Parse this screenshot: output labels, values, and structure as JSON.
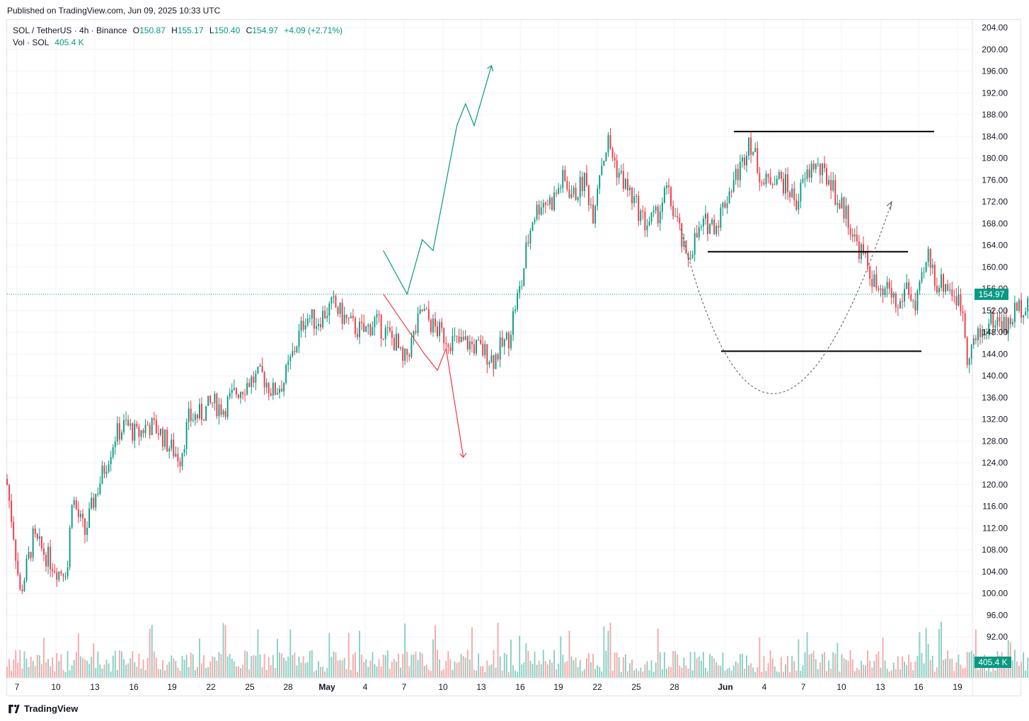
{
  "header": {
    "published": "Published on TradingView.com, Jun 09, 2025 10:33 UTC"
  },
  "legend": {
    "symbol": "SOL / TetherUS · 4h · Binance",
    "o_label": "O",
    "o": "150.87",
    "h_label": "H",
    "h": "155.17",
    "l_label": "L",
    "l": "150.40",
    "c_label": "C",
    "c": "154.97",
    "change": "+4.09 (+2.71%)",
    "vol_label": "Vol · SOL",
    "vol": "405.4 K"
  },
  "footer": {
    "brand": "TradingView"
  },
  "colors": {
    "up": "#089981",
    "down": "#f23645",
    "vol_up": "#89cfc3",
    "vol_down": "#f7a9a7",
    "grid": "#f0f3fa",
    "last": "#089981"
  },
  "chart_data": {
    "type": "candlestick",
    "symbol": "SOL / TetherUS",
    "interval": "4h",
    "exchange": "Binance",
    "ylim": [
      90,
      205
    ],
    "y_ticks": [
      "204.00",
      "200.00",
      "196.00",
      "192.00",
      "188.00",
      "184.00",
      "180.00",
      "176.00",
      "172.00",
      "168.00",
      "164.00",
      "160.00",
      "156.00",
      "152.00",
      "148.00",
      "144.00",
      "140.00",
      "136.00",
      "132.00",
      "128.00",
      "124.00",
      "120.00",
      "116.00",
      "112.00",
      "108.00",
      "104.00",
      "100.00",
      "96.00",
      "92.00"
    ],
    "x_ticks": [
      "7",
      "10",
      "13",
      "16",
      "19",
      "22",
      "25",
      "28",
      "May",
      "4",
      "7",
      "10",
      "13",
      "16",
      "19",
      "22",
      "25",
      "28",
      "Jun",
      "4",
      "7",
      "10",
      "13",
      "16",
      "19"
    ],
    "last_price": "154.97",
    "last_volume": "405.4 K",
    "price_path": [
      [
        0,
        120
      ],
      [
        3,
        111
      ],
      [
        6,
        100
      ],
      [
        8,
        103
      ],
      [
        12,
        110
      ],
      [
        16,
        108
      ],
      [
        20,
        106
      ],
      [
        24,
        104
      ],
      [
        28,
        105
      ],
      [
        30,
        118
      ],
      [
        33,
        114
      ],
      [
        36,
        111
      ],
      [
        40,
        117
      ],
      [
        45,
        123
      ],
      [
        50,
        129
      ],
      [
        55,
        131
      ],
      [
        60,
        129
      ],
      [
        65,
        131
      ],
      [
        70,
        130
      ],
      [
        75,
        127
      ],
      [
        80,
        125
      ],
      [
        84,
        132
      ],
      [
        90,
        133
      ],
      [
        95,
        135
      ],
      [
        100,
        134
      ],
      [
        106,
        137
      ],
      [
        112,
        139
      ],
      [
        118,
        140
      ],
      [
        123,
        137
      ],
      [
        128,
        139
      ],
      [
        133,
        145
      ],
      [
        138,
        151
      ],
      [
        143,
        150
      ],
      [
        148,
        152
      ],
      [
        151,
        153
      ],
      [
        155,
        151
      ],
      [
        160,
        149
      ],
      [
        165,
        148
      ],
      [
        170,
        150
      ],
      [
        175,
        148
      ],
      [
        180,
        146
      ],
      [
        183,
        142
      ],
      [
        187,
        146
      ],
      [
        192,
        152
      ],
      [
        197,
        149
      ],
      [
        203,
        147
      ],
      [
        208,
        146
      ],
      [
        213,
        146
      ],
      [
        218,
        145
      ],
      [
        222,
        144
      ],
      [
        225,
        143
      ],
      [
        228,
        145
      ],
      [
        232,
        147
      ],
      [
        235,
        153
      ],
      [
        238,
        157
      ],
      [
        240,
        163
      ],
      [
        243,
        169
      ],
      [
        247,
        172
      ],
      [
        252,
        172
      ],
      [
        257,
        176
      ],
      [
        262,
        173
      ],
      [
        267,
        176
      ],
      [
        271,
        170
      ],
      [
        274,
        178
      ],
      [
        278,
        183
      ],
      [
        282,
        178
      ],
      [
        286,
        175
      ],
      [
        290,
        172
      ],
      [
        295,
        168
      ],
      [
        300,
        169
      ],
      [
        305,
        174
      ],
      [
        310,
        168
      ],
      [
        314,
        161
      ],
      [
        318,
        165
      ],
      [
        323,
        168
      ],
      [
        328,
        168
      ],
      [
        332,
        172
      ],
      [
        336,
        176
      ],
      [
        340,
        179
      ],
      [
        343,
        184
      ],
      [
        346,
        180
      ],
      [
        350,
        175
      ],
      [
        355,
        177
      ],
      [
        360,
        175
      ],
      [
        365,
        172
      ],
      [
        369,
        176
      ],
      [
        373,
        179
      ],
      [
        377,
        177
      ],
      [
        381,
        176
      ],
      [
        384,
        172
      ],
      [
        388,
        170
      ],
      [
        392,
        165
      ],
      [
        396,
        162
      ],
      [
        400,
        158
      ],
      [
        404,
        154
      ],
      [
        408,
        156
      ],
      [
        412,
        152
      ],
      [
        416,
        157
      ],
      [
        420,
        152
      ],
      [
        423,
        157
      ],
      [
        426,
        162
      ],
      [
        430,
        157
      ],
      [
        434,
        157
      ],
      [
        438,
        155
      ],
      [
        442,
        152
      ],
      [
        444,
        144
      ],
      [
        447,
        146
      ],
      [
        451,
        148
      ],
      [
        455,
        150
      ],
      [
        459,
        150
      ],
      [
        463,
        149
      ],
      [
        466,
        152
      ],
      [
        470,
        153
      ],
      [
        473,
        155
      ]
    ],
    "annotations": {
      "levels": [
        184.9,
        162.8,
        144.5
      ],
      "bullish_path": [
        [
          174,
          163
        ],
        [
          185,
          155
        ],
        [
          192,
          165
        ],
        [
          197,
          163
        ],
        [
          208,
          186
        ],
        [
          212,
          190
        ],
        [
          216,
          186
        ],
        [
          224,
          197
        ]
      ],
      "bearish_path": [
        [
          174,
          155
        ],
        [
          193,
          144
        ],
        [
          199,
          141
        ],
        [
          203,
          145
        ],
        [
          211,
          125
        ]
      ],
      "cup_curve": "dashed arc from ~1 Jun (167) to ~10 Jun (172) with bottom ~140"
    }
  }
}
